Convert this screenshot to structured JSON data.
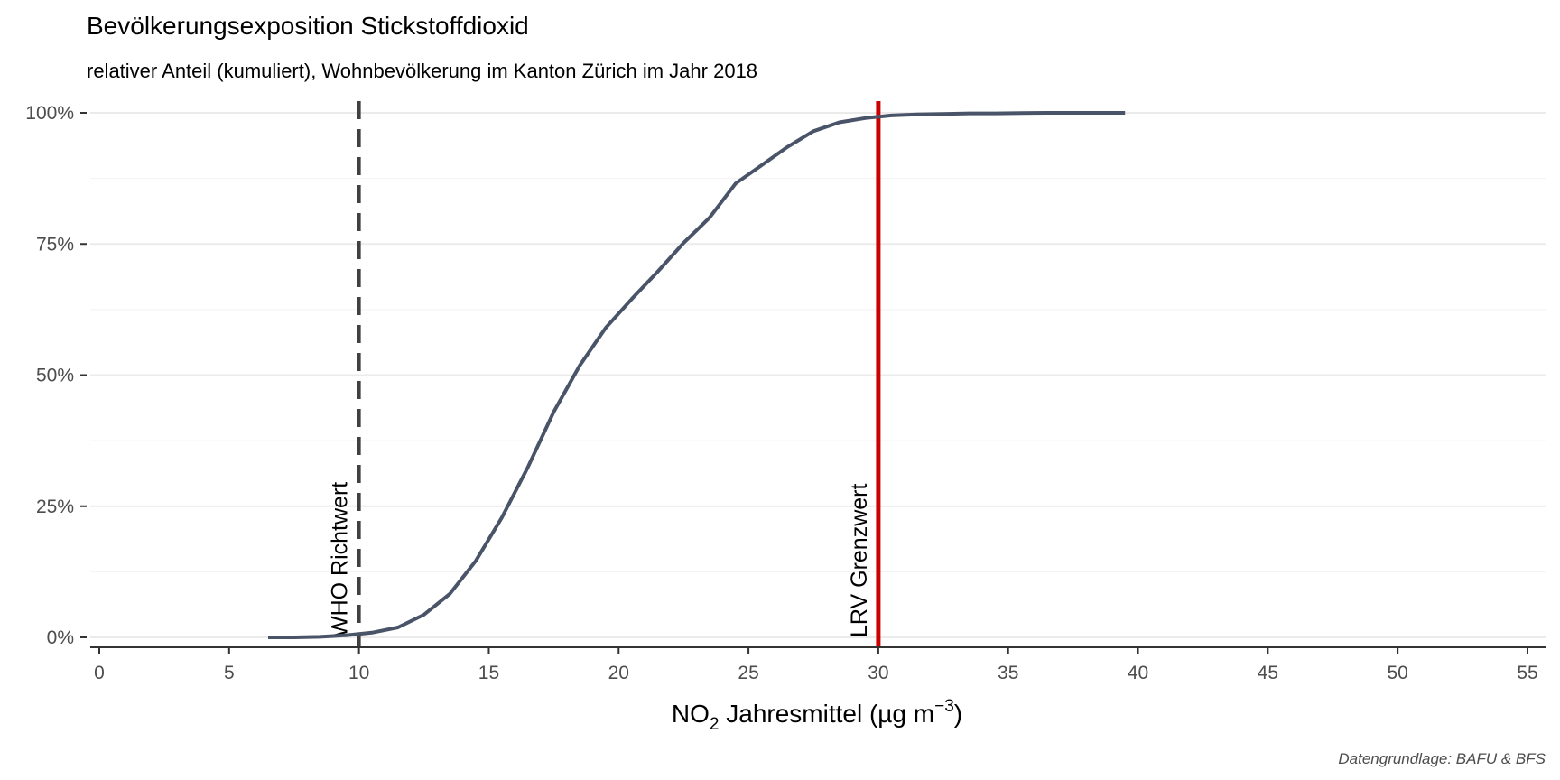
{
  "chart_data": {
    "type": "line",
    "title": "Bevölkerungsexposition Stickstoffdioxid",
    "subtitle": "relativer Anteil (kumuliert), Wohnbevölkerung im Kanton Zürich im Jahr 2018",
    "xlabel": {
      "prefix": "NO",
      "subscript": "2",
      "middle": " Jahresmittel (µg m",
      "superscript": "−3",
      "suffix": ")"
    },
    "ylabel": "",
    "xlim": [
      0,
      55
    ],
    "ylim": [
      0,
      1
    ],
    "x_ticks": [
      0,
      5,
      10,
      15,
      20,
      25,
      30,
      35,
      40,
      45,
      50,
      55
    ],
    "x_tick_labels": [
      "0",
      "5",
      "10",
      "15",
      "20",
      "25",
      "30",
      "35",
      "40",
      "45",
      "50",
      "55"
    ],
    "y_ticks": [
      0,
      0.25,
      0.5,
      0.75,
      1.0
    ],
    "y_tick_labels": [
      "0%",
      "25%",
      "50%",
      "75%",
      "100%"
    ],
    "grid": "horizontal",
    "legend": "none",
    "series": [
      {
        "color": "#4a5468",
        "x": [
          6.5,
          7.5,
          8.5,
          9.5,
          10.5,
          11.5,
          12.5,
          13.5,
          14.5,
          15.5,
          16.5,
          17.5,
          18.5,
          19.5,
          20.5,
          21.5,
          22.5,
          23.5,
          24.5,
          25.5,
          26.5,
          27.5,
          28.5,
          29.5,
          30.5,
          31.5,
          32.5,
          33.5,
          34.5,
          35.5,
          36.5,
          37.5,
          38.5,
          39.5
        ],
        "y": [
          0.0,
          0.0,
          0.001,
          0.004,
          0.009,
          0.019,
          0.043,
          0.083,
          0.146,
          0.228,
          0.324,
          0.43,
          0.518,
          0.59,
          0.645,
          0.697,
          0.752,
          0.8,
          0.865,
          0.9,
          0.935,
          0.965,
          0.982,
          0.99,
          0.995,
          0.997,
          0.998,
          0.999,
          0.999,
          0.9995,
          1.0,
          1.0,
          1.0,
          1.0
        ]
      }
    ],
    "reference_lines": [
      {
        "x": 10,
        "label": "WHO Richtwert",
        "color": "#404040",
        "style": "dashed"
      },
      {
        "x": 30,
        "label": "LRV Grenzwert",
        "color": "#cc0000",
        "style": "solid"
      }
    ],
    "caption": "Datengrundlage: BAFU & BFS"
  }
}
